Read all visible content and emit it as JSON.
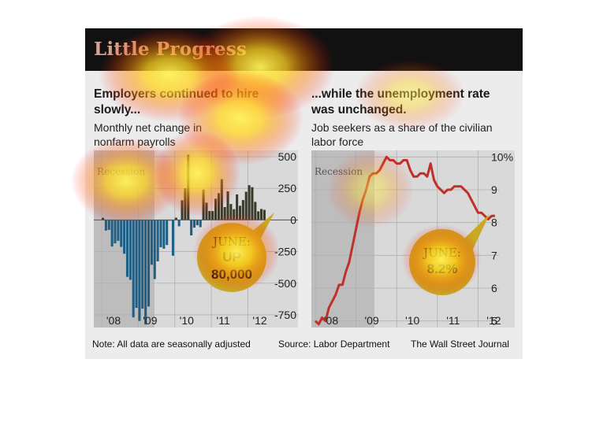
{
  "title": "Little Progress",
  "left_panel": {
    "headline_line1": "Employers continued to hire",
    "headline_line2": "slowly...",
    "subtitle_line1": "Monthly net change in",
    "subtitle_line2": "nonfarm payrolls",
    "recession_label": "Recession",
    "callout_line1": "JUNE:",
    "callout_line2": "UP",
    "callout_line3": "80,000"
  },
  "right_panel": {
    "headline_line1": "...while the unemployment rate",
    "headline_line2": "was unchanged.",
    "subtitle_line1": "Job seekers as a share of the civilian",
    "subtitle_line2": "labor force",
    "recession_label": "Recession",
    "callout_line1": "JUNE:",
    "callout_line2": "8.2%"
  },
  "footer": {
    "note": "Note: All data are seasonally adjusted",
    "source": "Source: Labor Department",
    "credit": "The Wall Street Journal"
  },
  "colors": {
    "title_bar": "#111111",
    "title_text": "#d7a48e",
    "panel_bg": "#ececec",
    "plot_bg": "#d9d9d9",
    "recession_shade": "#bdbdbd",
    "bar_positive": "#3a3a2a",
    "bar_negative": "#1f5f86",
    "line": "#c0302a",
    "callout": "#c9a826"
  },
  "chart_data": [
    {
      "type": "bar",
      "ylim": [
        -850,
        550
      ],
      "yticks": [
        "500",
        "250",
        "0",
        "-250",
        "-500",
        "-750"
      ],
      "ytick_values": [
        500,
        250,
        0,
        -250,
        -500,
        -750
      ],
      "xticks": [
        "'08",
        "'09",
        "'10",
        "'11",
        "'12"
      ],
      "recession": [
        "2008-01",
        "2009-06"
      ],
      "x_start": "2008-01",
      "values": [
        17,
        -84,
        -78,
        -210,
        -185,
        -165,
        -213,
        -267,
        -450,
        -473,
        -770,
        -695,
        -798,
        -701,
        -826,
        -684,
        -354,
        -467,
        -327,
        -216,
        -227,
        -198,
        -6,
        -283,
        18,
        -50,
        156,
        251,
        516,
        -122,
        -61,
        -42,
        -57,
        241,
        137,
        71,
        70,
        168,
        212,
        322,
        102,
        226,
        126,
        85,
        202,
        112,
        157,
        223,
        275,
        259,
        143,
        68,
        87,
        80
      ]
    },
    {
      "type": "line",
      "ylim": [
        4.8,
        10.2
      ],
      "yticks": [
        "10%",
        "9",
        "8",
        "7",
        "6",
        "5"
      ],
      "ytick_values": [
        10,
        9,
        8,
        7,
        6,
        5
      ],
      "xticks": [
        "'08",
        "'09",
        "'10",
        "'11",
        "'12"
      ],
      "recession": [
        "2008-01",
        "2009-06"
      ],
      "x_start": "2008-01",
      "values": [
        5.0,
        4.9,
        5.1,
        5.0,
        5.4,
        5.6,
        5.8,
        6.1,
        6.1,
        6.5,
        6.8,
        7.3,
        7.8,
        8.3,
        8.7,
        9.0,
        9.4,
        9.5,
        9.5,
        9.6,
        9.8,
        10.0,
        9.9,
        9.9,
        9.8,
        9.8,
        9.9,
        9.9,
        9.6,
        9.4,
        9.4,
        9.5,
        9.5,
        9.4,
        9.8,
        9.3,
        9.1,
        9.0,
        8.9,
        9.0,
        9.0,
        9.1,
        9.1,
        9.1,
        9.0,
        8.9,
        8.7,
        8.5,
        8.3,
        8.3,
        8.2,
        8.1,
        8.2,
        8.2
      ]
    }
  ]
}
